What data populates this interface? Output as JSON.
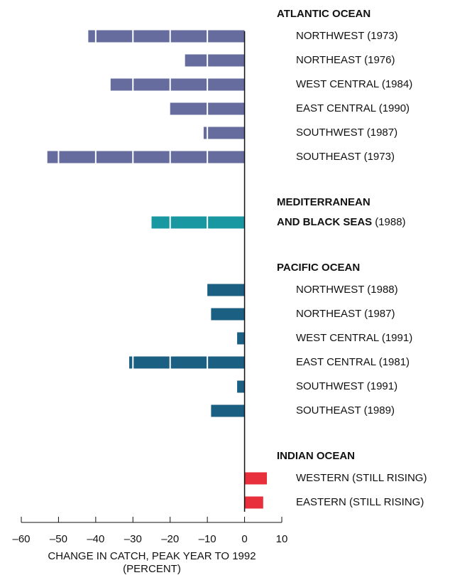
{
  "chart_data": {
    "type": "bar",
    "orientation": "horizontal",
    "xlabel": [
      "CHANGE IN CATCH, PEAK YEAR TO 1992",
      "(PERCENT)"
    ],
    "xlim": [
      -60,
      10
    ],
    "xticks": [
      {
        "value": -60,
        "label": "–60"
      },
      {
        "value": -50,
        "label": "–50"
      },
      {
        "value": -40,
        "label": "–40"
      },
      {
        "value": -30,
        "label": "–30"
      },
      {
        "value": -20,
        "label": "–20"
      },
      {
        "value": -10,
        "label": "–10"
      },
      0,
      10
    ],
    "groups": [
      {
        "name": [
          "ATLANTIC OCEAN"
        ],
        "color": "#676c9f",
        "categories": [
          "NORTHWEST (1973)",
          "NORTHEAST (1976)",
          "WEST CENTRAL (1984)",
          "EAST CENTRAL (1990)",
          "SOUTHWEST (1987)",
          "SOUTHEAST (1973)"
        ],
        "values": [
          -42,
          -16,
          -36,
          -20,
          -11,
          -53
        ]
      },
      {
        "name": [
          "MEDITERRANEAN",
          "AND BLACK SEAS"
        ],
        "color": "#1a98a2",
        "categories": [
          "(1988)"
        ],
        "values": [
          -25
        ]
      },
      {
        "name": [
          "PACIFIC OCEAN"
        ],
        "color": "#1b5f82",
        "categories": [
          "NORTHWEST (1988)",
          "NORTHEAST (1987)",
          "WEST CENTRAL (1991)",
          "EAST CENTRAL (1981)",
          "SOUTHWEST (1991)",
          "SOUTHEAST (1989)"
        ],
        "values": [
          -10,
          -9,
          -2,
          -31,
          -2,
          -9
        ]
      },
      {
        "name": [
          "INDIAN OCEAN"
        ],
        "color": "#e8303c",
        "categories": [
          "WESTERN (STILL RISING)",
          "EASTERN (STILL RISING)"
        ],
        "values": [
          6,
          5
        ]
      }
    ]
  }
}
